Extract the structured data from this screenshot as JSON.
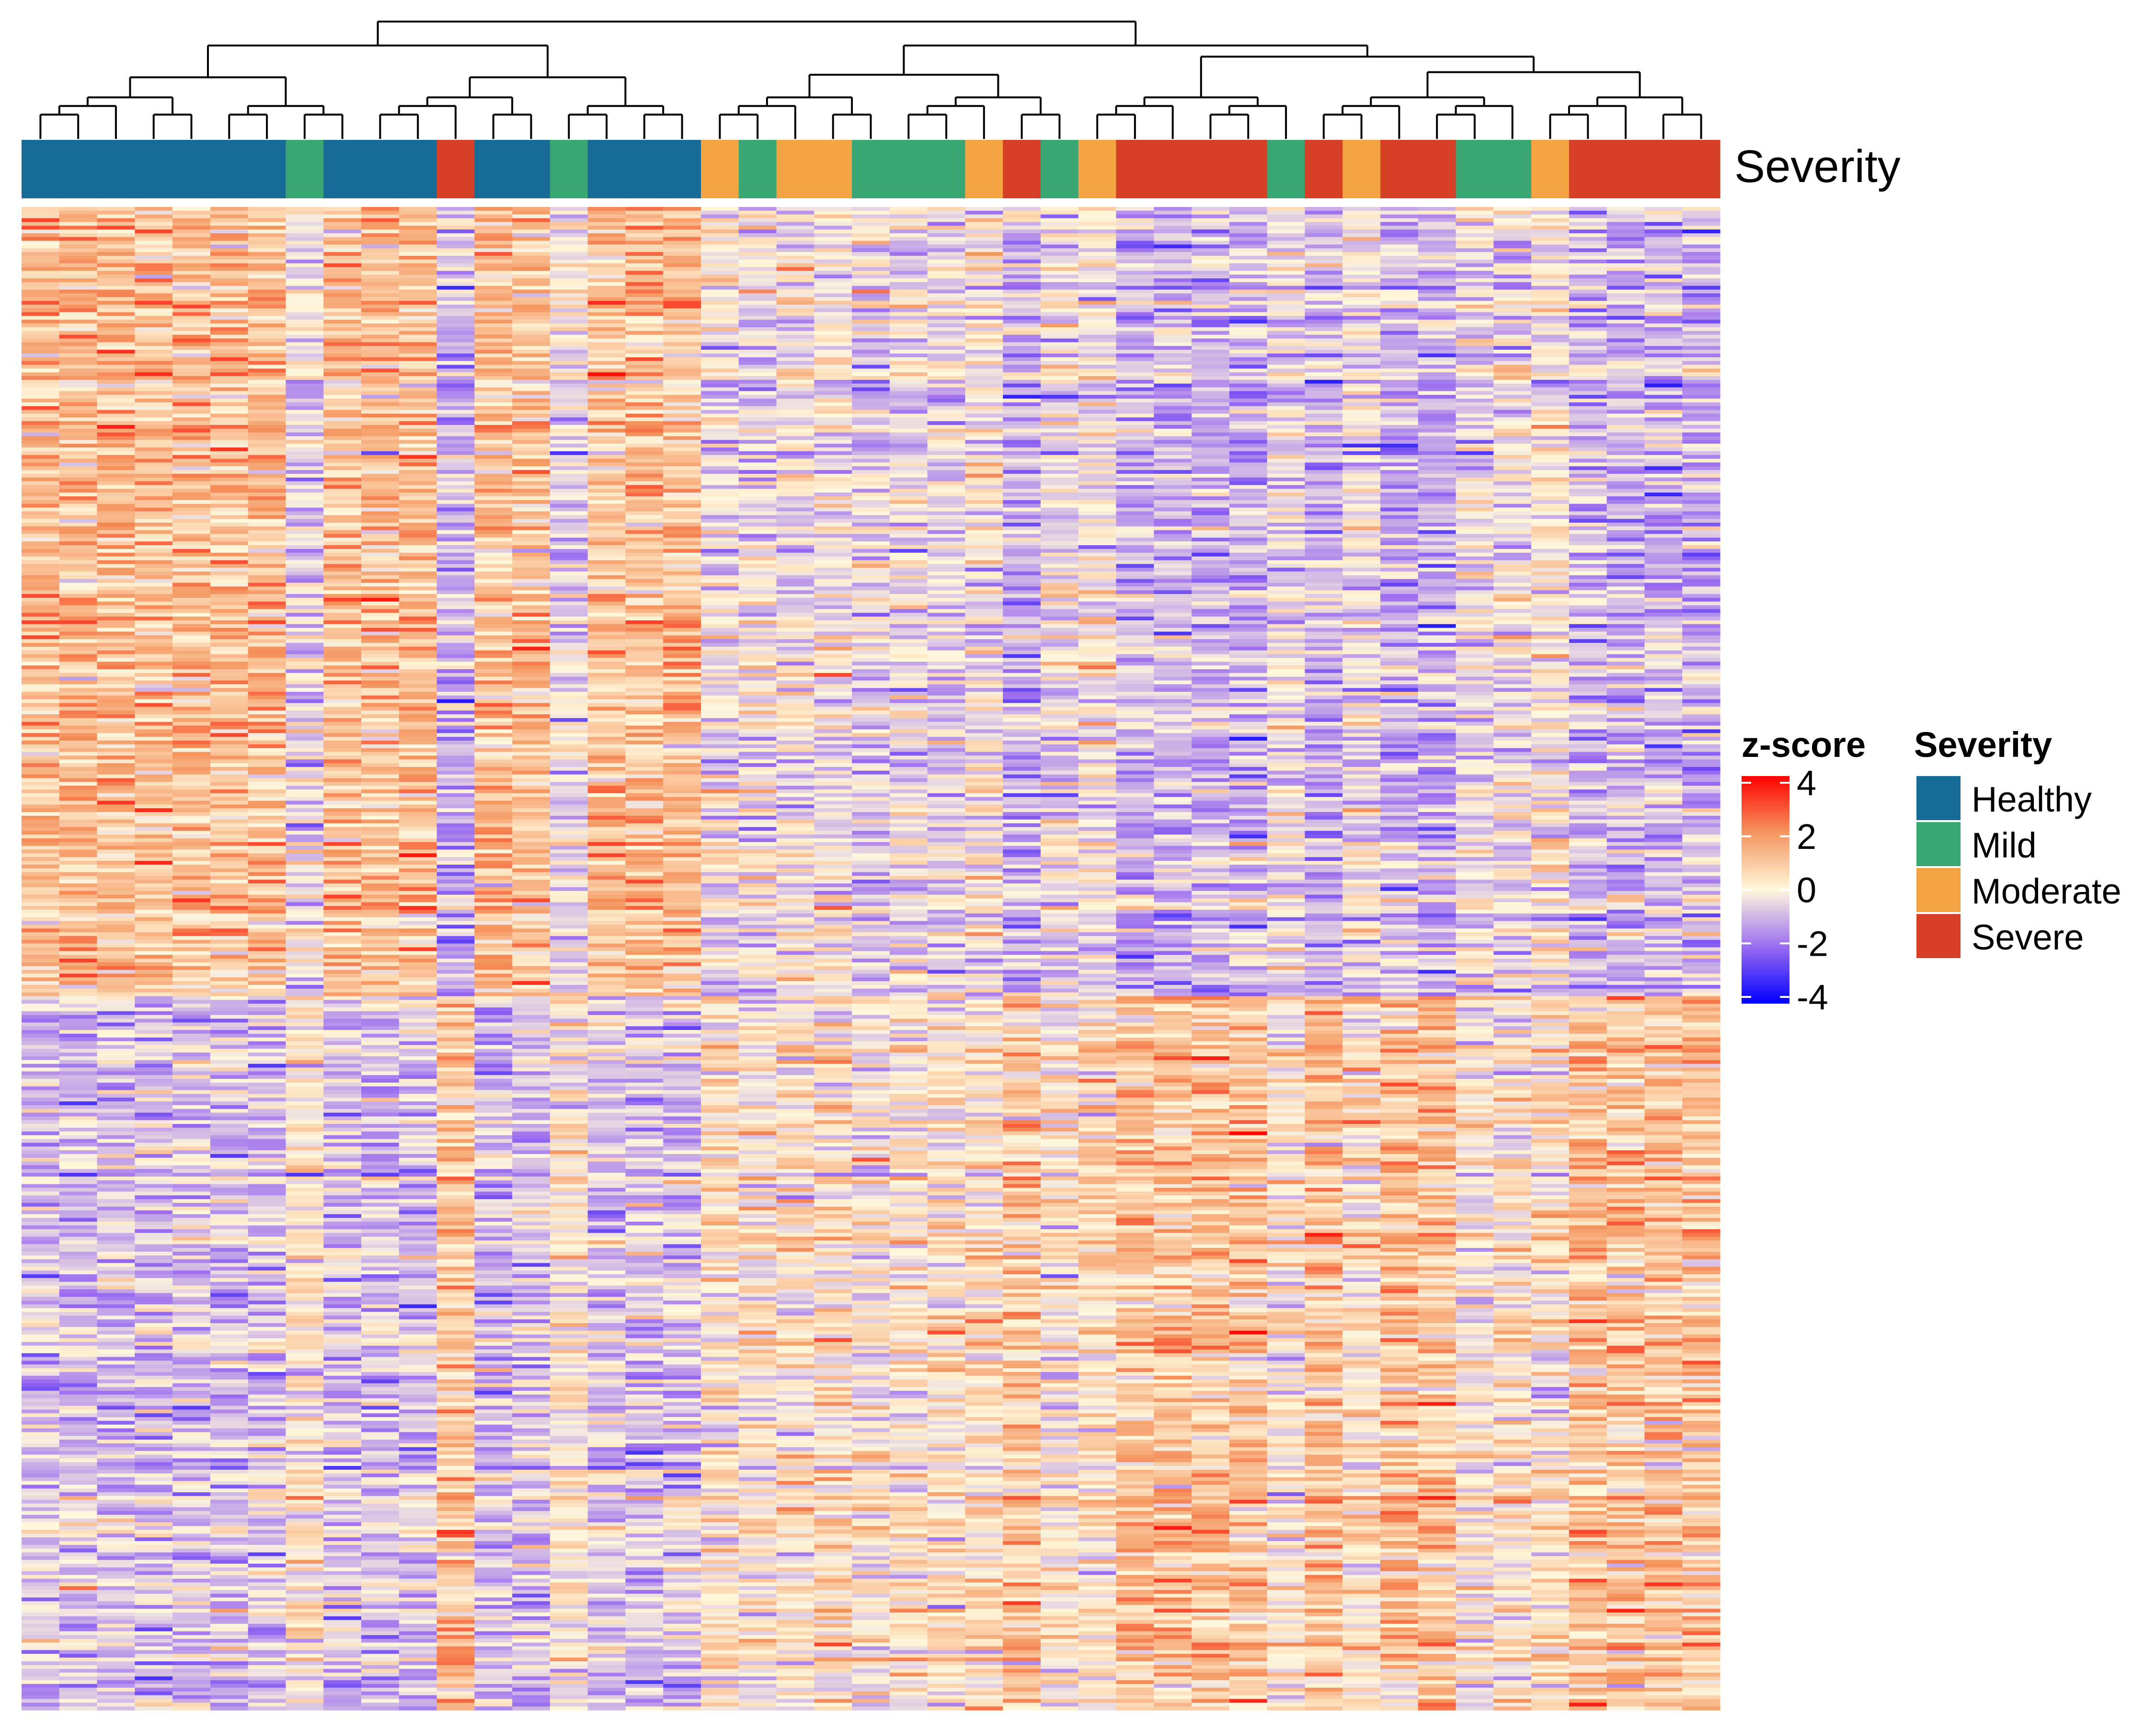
{
  "chart_data": {
    "type": "heatmap",
    "title": "",
    "xlabel": "",
    "ylabel": "",
    "annotation": {
      "label": "Severity",
      "columns": [
        "Healthy",
        "Healthy",
        "Healthy",
        "Healthy",
        "Healthy",
        "Healthy",
        "Healthy",
        "Mild",
        "Healthy",
        "Healthy",
        "Healthy",
        "Severe",
        "Healthy",
        "Healthy",
        "Mild",
        "Healthy",
        "Healthy",
        "Healthy",
        "Moderate",
        "Mild",
        "Moderate",
        "Moderate",
        "Mild",
        "Mild",
        "Mild",
        "Moderate",
        "Severe",
        "Mild",
        "Moderate",
        "Severe",
        "Severe",
        "Severe",
        "Severe",
        "Mild",
        "Severe",
        "Moderate",
        "Severe",
        "Severe",
        "Mild",
        "Mild",
        "Moderate",
        "Severe",
        "Severe",
        "Severe",
        "Severe"
      ]
    },
    "colorbar": {
      "title": "z-score",
      "ticks": [
        "4",
        "2",
        "0",
        "-2",
        "-4"
      ],
      "range": [
        -4,
        4
      ],
      "colors": [
        "#0000ff",
        "#9b6cf0",
        "#fff8dc",
        "#f59660",
        "#ff0000"
      ]
    },
    "legend": {
      "title": "Severity",
      "position": "right",
      "items": [
        {
          "label": "Healthy",
          "color": "#176b96"
        },
        {
          "label": "Mild",
          "color": "#3aa673"
        },
        {
          "label": "Moderate",
          "color": "#f5a444"
        },
        {
          "label": "Severe",
          "color": "#d43f26"
        }
      ]
    },
    "row_blocks": [
      {
        "rows": 210,
        "mean": {
          "Healthy": 1.1,
          "Mild": -0.4,
          "Moderate": -0.2,
          "Severe": -1.0
        }
      },
      {
        "rows": 190,
        "mean": {
          "Healthy": -0.8,
          "Mild": 0.1,
          "Moderate": 0.3,
          "Severe": 1.0
        }
      }
    ],
    "grid": false
  }
}
